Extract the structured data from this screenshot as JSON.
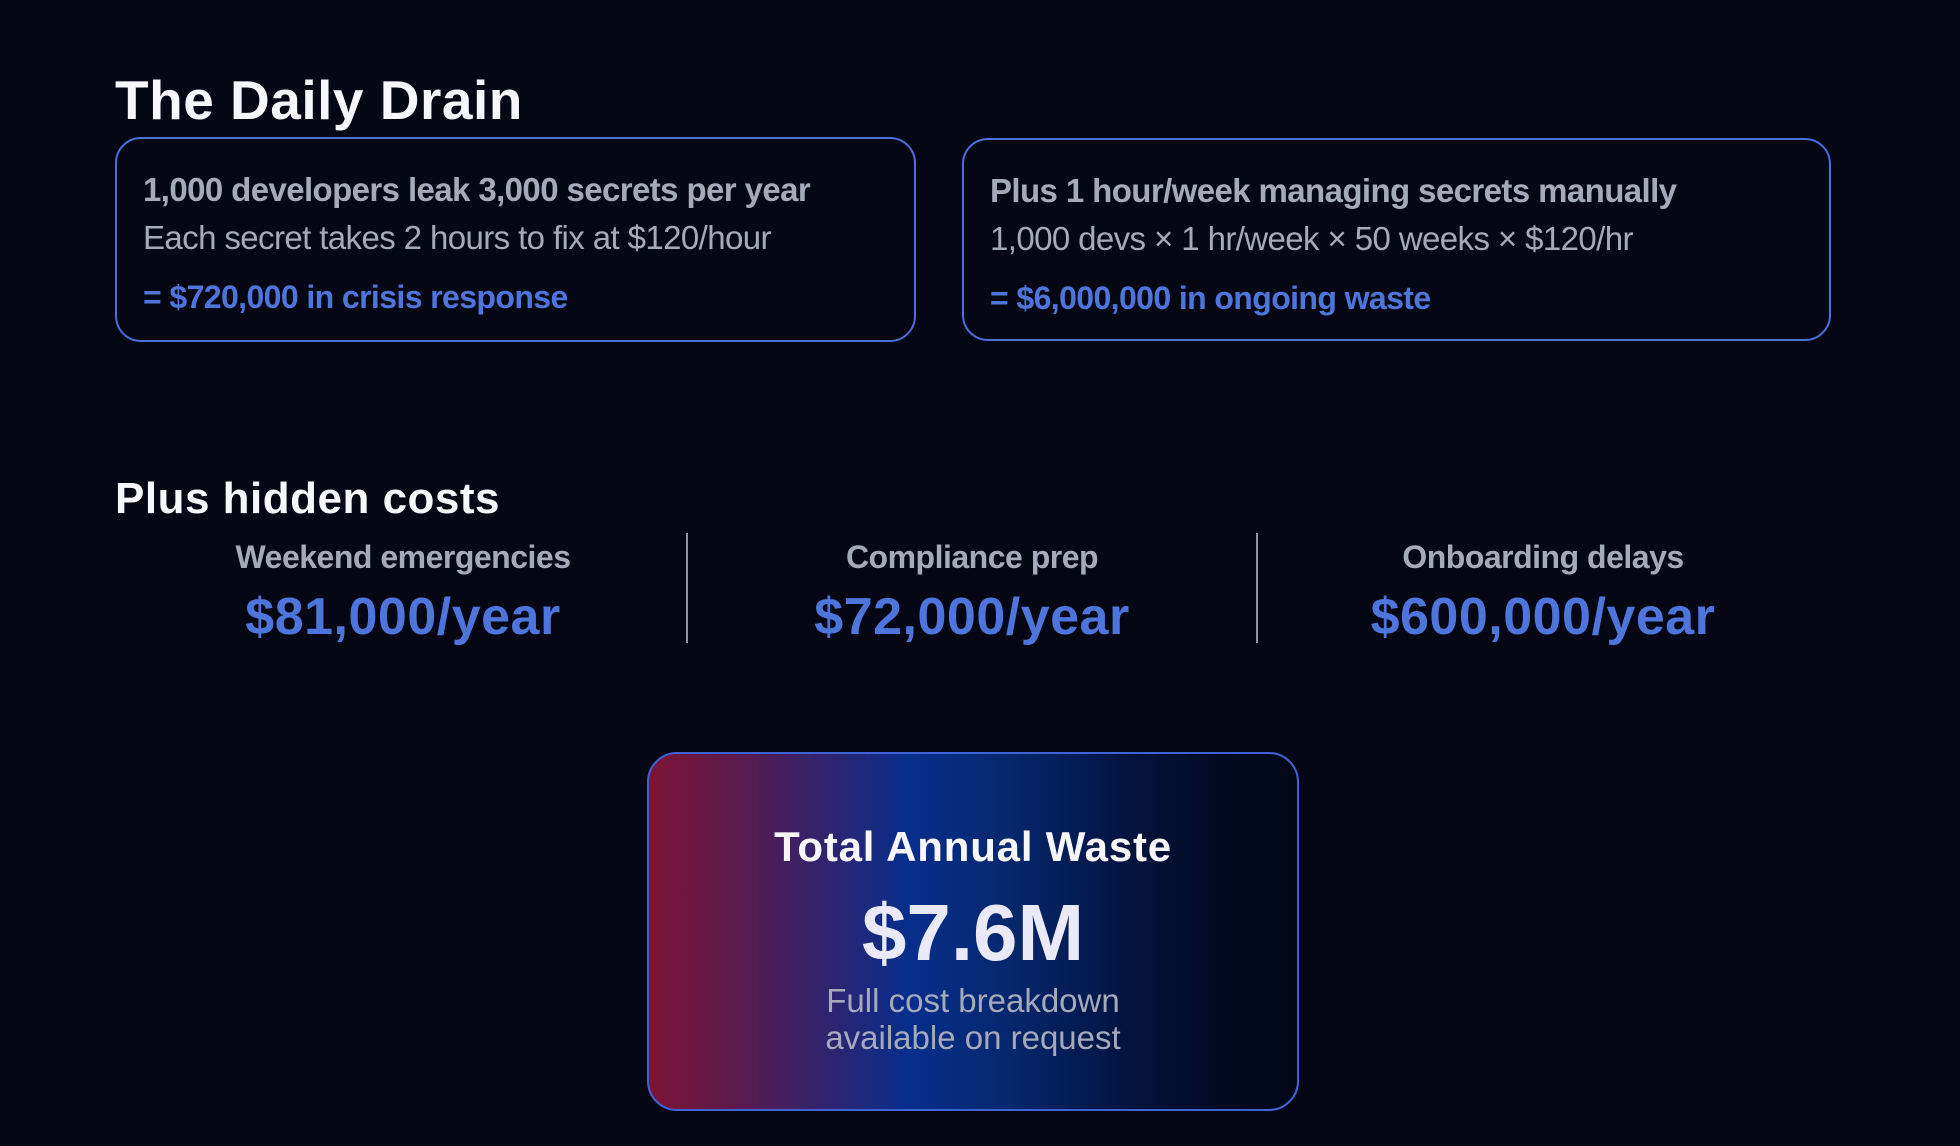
{
  "page": {
    "title": "The Daily Drain",
    "background_color": "#050814",
    "accent_color": "#4e75dc",
    "muted_text_color": "#a5aabb"
  },
  "cost_cards": [
    {
      "headline": "1,000 developers leak 3,000 secrets per year",
      "detail": "Each secret takes 2 hours to fix at $120/hour",
      "result": "= $720,000 in crisis response"
    },
    {
      "headline": "Plus 1 hour/week managing secrets manually",
      "detail": "1,000 devs × 1 hr/week × 50 weeks × $120/hr",
      "result": "= $6,000,000 in ongoing waste"
    }
  ],
  "hidden_costs": {
    "title": "Plus hidden costs",
    "items": [
      {
        "label": "Weekend emergencies",
        "value": "$81,000/year"
      },
      {
        "label": "Compliance prep",
        "value": "$72,000/year"
      },
      {
        "label": "Onboarding delays",
        "value": "$600,000/year"
      }
    ]
  },
  "total": {
    "title": "Total Annual Waste",
    "value": "$7.6M",
    "note_line_1": "Full cost breakdown",
    "note_line_2": "available on request",
    "gradient_colors": [
      "#7c1436",
      "#072e8c",
      "#030818"
    ]
  }
}
